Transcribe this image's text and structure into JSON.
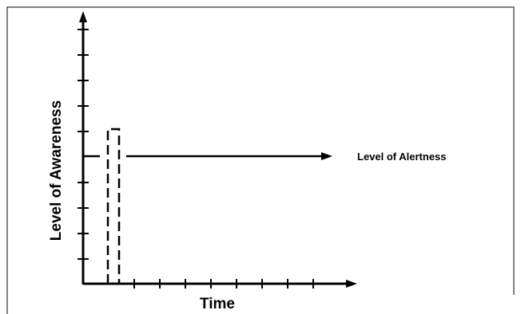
{
  "diagram": {
    "y_axis_label": "Level of Awareness",
    "x_axis_label": "Time",
    "line_label": "Level of Alertness",
    "colors": {
      "ink": "#000000",
      "frame": "#000000",
      "background": "#ffffff"
    }
  }
}
